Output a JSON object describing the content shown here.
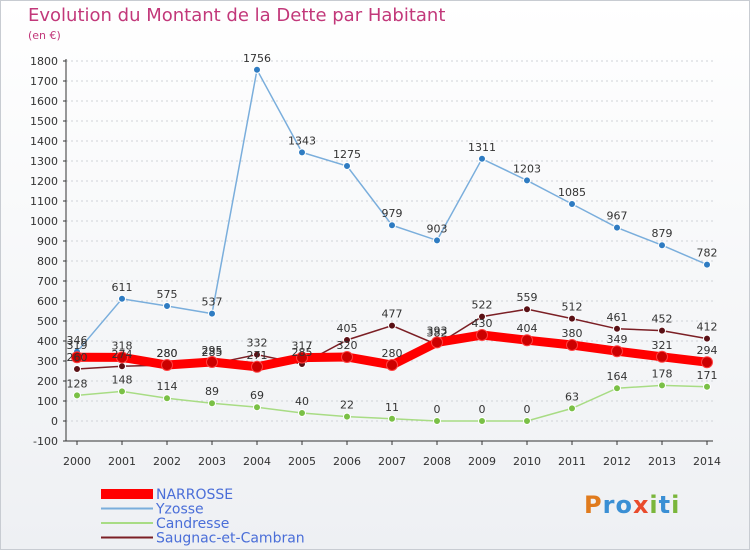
{
  "chart_data": {
    "type": "line",
    "title": "Evolution du Montant de la Dette par Habitant",
    "subtitle": "(en €)",
    "xlabel": "",
    "ylabel": "",
    "categories": [
      "2000",
      "2001",
      "2002",
      "2003",
      "2004",
      "2005",
      "2006",
      "2007",
      "2008",
      "2009",
      "2010",
      "2011",
      "2012",
      "2013",
      "2014"
    ],
    "ylim": [
      -100,
      1800
    ],
    "yticks": [
      -100,
      0,
      100,
      200,
      300,
      400,
      500,
      600,
      700,
      800,
      900,
      1000,
      1100,
      1200,
      1300,
      1400,
      1500,
      1600,
      1700,
      1800
    ],
    "legend_position": "bottom-left",
    "series": [
      {
        "name": "Saugnac-et-Cambran",
        "color": "#7b1f25",
        "point": "#5a1015",
        "values": [
          260,
          274,
          280,
          285,
          332,
          285,
          405,
          477,
          382,
          522,
          559,
          512,
          461,
          452,
          412
        ],
        "labels": [
          "260",
          "274",
          "280",
          "285",
          "332",
          "285",
          "405",
          "477",
          "382",
          "522",
          "559",
          "512",
          "461",
          "452",
          "412"
        ]
      },
      {
        "name": "Candresse",
        "color": "#a8dc84",
        "point": "#7ac046",
        "values": [
          128,
          148,
          114,
          89,
          69,
          40,
          22,
          11,
          0,
          0,
          0,
          63,
          164,
          178,
          171
        ],
        "labels": [
          "128",
          "148",
          "114",
          "89",
          "69",
          "40",
          "22",
          "11",
          "0",
          "0",
          "0",
          "63",
          "164",
          "178",
          "171"
        ]
      },
      {
        "name": "Yzosse",
        "color": "#7aaedc",
        "point": "#2f7cc2",
        "values": [
          346,
          611,
          575,
          537,
          1756,
          1343,
          1275,
          979,
          903,
          1311,
          1203,
          1085,
          967,
          879,
          782
        ],
        "labels": [
          "346",
          "611",
          "575",
          "537",
          "1756",
          "1343",
          "1275",
          "979",
          "903",
          "1311",
          "1203",
          "1085",
          "967",
          "879",
          "782"
        ]
      },
      {
        "name": "NARROSSE",
        "color": "#ff0000",
        "point": "#cc0000",
        "thick": true,
        "values": [
          319,
          318,
          280,
          295,
          271,
          317,
          320,
          280,
          393,
          430,
          404,
          380,
          349,
          321,
          294
        ],
        "labels": [
          "319",
          "318",
          "280",
          "295",
          "271",
          "317",
          "320",
          "280",
          "393",
          "430",
          "404",
          "380",
          "349",
          "321",
          "294"
        ]
      }
    ],
    "legend_order": [
      "NARROSSE",
      "Yzosse",
      "Candresse",
      "Saugnac-et-Cambran"
    ]
  },
  "logo": {
    "p": "P",
    "r": "r",
    "o": "o",
    "x": "x",
    "i": "i",
    "t": "t",
    "i2": "i"
  }
}
